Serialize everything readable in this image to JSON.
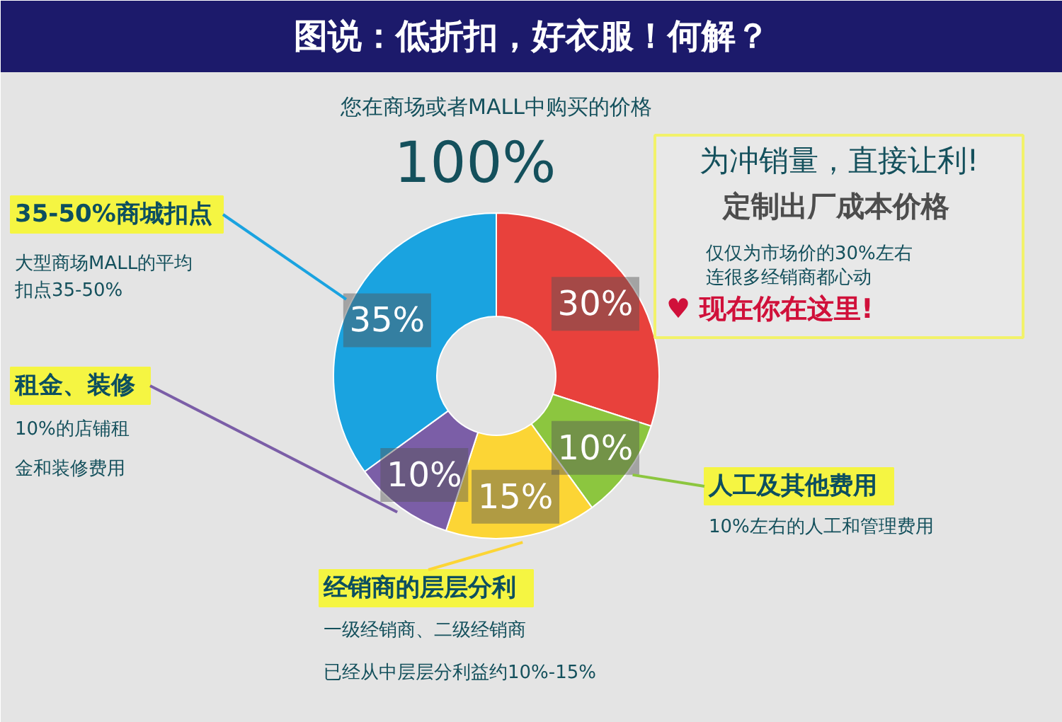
{
  "chart_data": {
    "type": "donut",
    "title": "图说：低折扣，好衣服！何解？",
    "categories": [
      "定制出厂成本价格",
      "人工及其他费用",
      "经销商的层层分利",
      "租金、装修",
      "35-50%商城扣点"
    ],
    "values": [
      30,
      10,
      15,
      10,
      35
    ],
    "colors": [
      "#e8413c",
      "#8cc63f",
      "#fcd535",
      "#7b5ea7",
      "#1aa3e0"
    ],
    "value_labels": [
      "30%",
      "10%",
      "15%",
      "10%",
      "35%"
    ],
    "annotations": [
      "您在商场或者MALL中购买的价格",
      "100%",
      "为冲销量，直接让利!",
      "仅仅为市场价的30%左右",
      "连很多经销商都心动",
      "♥ 现在你在这里!",
      "大型商场MALL的平均",
      "扣点35-50%",
      "10%的店铺租",
      "金和装修费用",
      "10%左右的人工和管理费用",
      "一级经销商、二级经销商",
      "已经从中层层分利益约10%-15%"
    ]
  }
}
